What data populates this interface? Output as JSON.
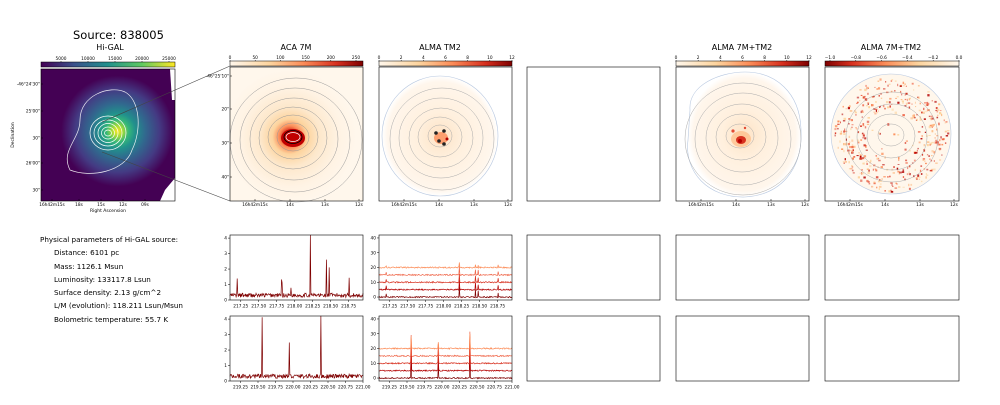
{
  "title": "Source: 838005",
  "panels": {
    "higal": {
      "label": "Hi-GAL",
      "colorbar_ticks": [
        "5000",
        "10000",
        "15000",
        "20000",
        "25000"
      ],
      "xlabel": "Right Ascension",
      "ylabel": "Declination",
      "x_ticks": [
        "16h42m15s",
        "18s",
        "15s",
        "12s",
        "09s"
      ],
      "y_ticks": [
        "-46°24'30\"",
        "25'00\"",
        "30\"",
        "26'00\"",
        "30\""
      ]
    },
    "aca": {
      "label": "ACA 7M",
      "colorbar_ticks": [
        "0",
        "50",
        "100",
        "150",
        "200",
        "250"
      ],
      "x_ticks": [
        "16h42m15s",
        "14s",
        "13s",
        "12s"
      ],
      "y_ticks": [
        "-46°25'10\"",
        "20\"",
        "30\"",
        "40\""
      ]
    },
    "tm2": {
      "label": "ALMA TM2",
      "colorbar_ticks": [
        "0",
        "2",
        "4",
        "6",
        "8",
        "10",
        "12"
      ],
      "x_ticks": [
        "16h42m15s",
        "14s",
        "13s",
        "12s"
      ]
    },
    "combo": {
      "label": "ALMA 7M+TM2",
      "colorbar_ticks": [
        "0",
        "2",
        "4",
        "6",
        "8",
        "10",
        "12"
      ],
      "x_ticks": [
        "16h42m15s",
        "14s",
        "13s",
        "12s"
      ]
    },
    "combo_neg": {
      "label": "ALMA 7M+TM2",
      "colorbar_ticks": [
        "−1.0",
        "−0.8",
        "−0.6",
        "−0.4",
        "−0.2",
        "0.0"
      ],
      "x_ticks": [
        "16h42m15s",
        "14s",
        "13s",
        "12s"
      ]
    }
  },
  "params": {
    "header": "Physical parameters of Hi-GAL source:",
    "rows": [
      "Distance: 6101 pc",
      "Mass: 1126.1 Msun",
      "Luminosity: 133117.8 Lsun",
      "Surface density: 2.13 g/cm^2",
      "L/M (evolution): 118.211 Lsun/Msun",
      "Bolometric temperature: 55.7 K"
    ]
  },
  "chart_data": [
    {
      "type": "line",
      "name_hint": "aca-spectrum-lower-sideband",
      "xlim": [
        217.1,
        218.95
      ],
      "ylim": [
        0,
        4.2
      ],
      "x_ticks": [
        217.25,
        217.5,
        217.75,
        218.0,
        218.25,
        218.5,
        218.75
      ],
      "y_ticks": [
        0,
        1,
        2,
        3,
        4
      ],
      "lines_x": [
        217.2,
        217.82,
        217.95,
        218.22,
        218.44,
        218.48,
        218.76
      ],
      "lines_y": [
        1.0,
        0.9,
        0.6,
        3.9,
        2.3,
        1.7,
        1.1
      ]
    },
    {
      "type": "line",
      "name_hint": "tm2-spectra-lower-sideband",
      "xlim": [
        217.1,
        218.95
      ],
      "ylim": [
        -2,
        42
      ],
      "x_ticks": [
        217.25,
        217.5,
        217.75,
        218.0,
        218.25,
        218.5,
        218.75
      ],
      "y_ticks": [
        0,
        10,
        20,
        30,
        40
      ],
      "offsets": [
        0,
        5,
        10,
        15,
        20
      ],
      "lines_x": [
        217.2,
        218.22,
        218.44,
        218.48,
        218.76
      ],
      "lines_y": [
        2.5,
        7,
        5,
        4,
        3
      ]
    },
    {
      "type": "line",
      "name_hint": "aca-spectrum-upper-sideband",
      "xlim": [
        219.1,
        221.0
      ],
      "ylim": [
        0,
        4.2
      ],
      "x_ticks": [
        219.25,
        219.5,
        219.75,
        220.0,
        220.25,
        220.5,
        220.75,
        221.0
      ],
      "y_ticks": [
        0,
        1,
        2,
        3,
        4
      ],
      "lines_x": [
        219.56,
        219.95,
        220.4
      ],
      "lines_y": [
        3.8,
        2.2,
        3.9
      ]
    },
    {
      "type": "line",
      "name_hint": "tm2-spectra-upper-sideband",
      "xlim": [
        219.1,
        221.0
      ],
      "ylim": [
        -2,
        42
      ],
      "x_ticks": [
        219.25,
        219.5,
        219.75,
        220.0,
        220.25,
        220.5,
        220.75,
        221.0
      ],
      "y_ticks": [
        0,
        10,
        20,
        30,
        40
      ],
      "offsets": [
        0,
        5,
        10,
        15,
        20
      ],
      "lines_x": [
        219.56,
        219.95,
        220.4
      ],
      "lines_y": [
        18,
        10,
        21
      ]
    }
  ]
}
